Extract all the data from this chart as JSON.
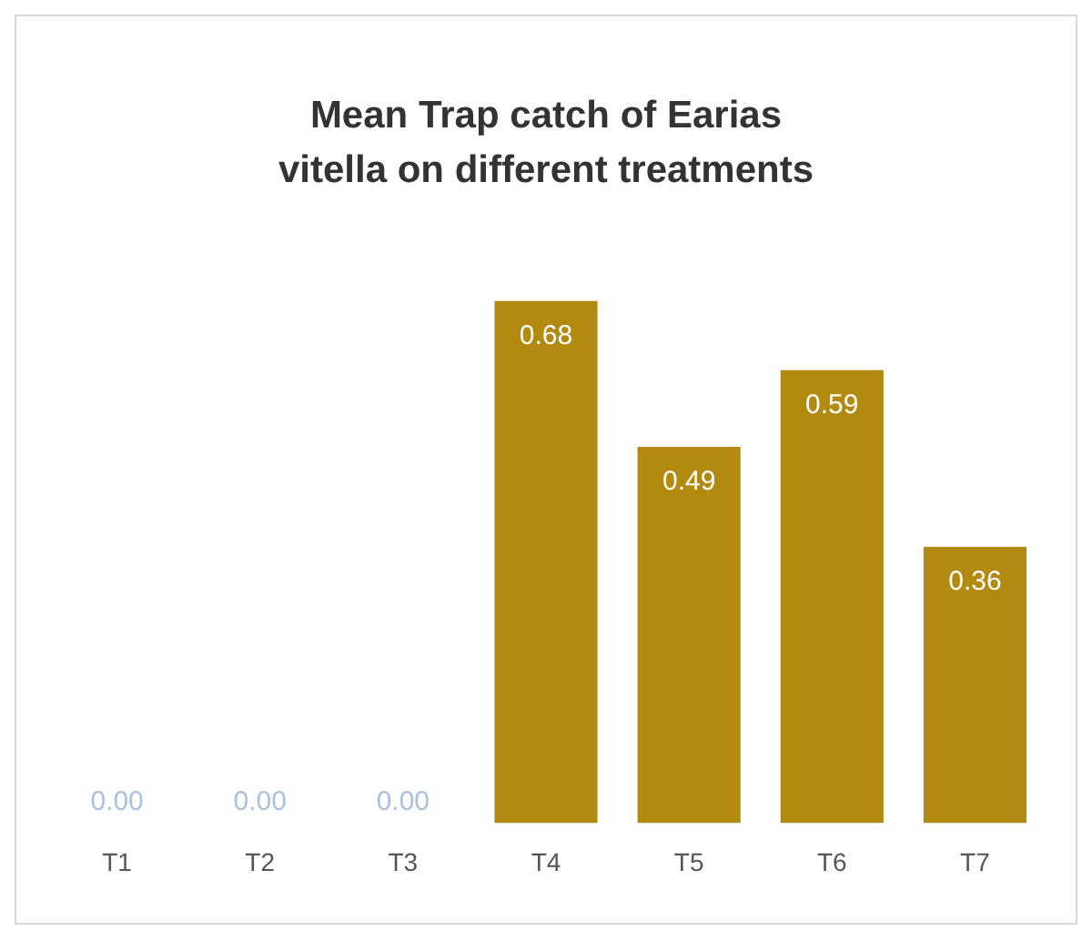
{
  "chart_data": {
    "type": "bar",
    "title": "Mean Trap catch of Earias vitella on different treatments",
    "categories": [
      "T1",
      "T2",
      "T3",
      "T4",
      "T5",
      "T6",
      "T7"
    ],
    "values": [
      0,
      0,
      0,
      0.68,
      0.49,
      0.59,
      0.36
    ],
    "value_labels": [
      "0.00",
      "0.00",
      "0.00",
      "0.68",
      "0.49",
      "0.59",
      "0.36"
    ],
    "color": "#b38a10",
    "tick_labels": "x",
    "grid": false,
    "legend": false
  }
}
